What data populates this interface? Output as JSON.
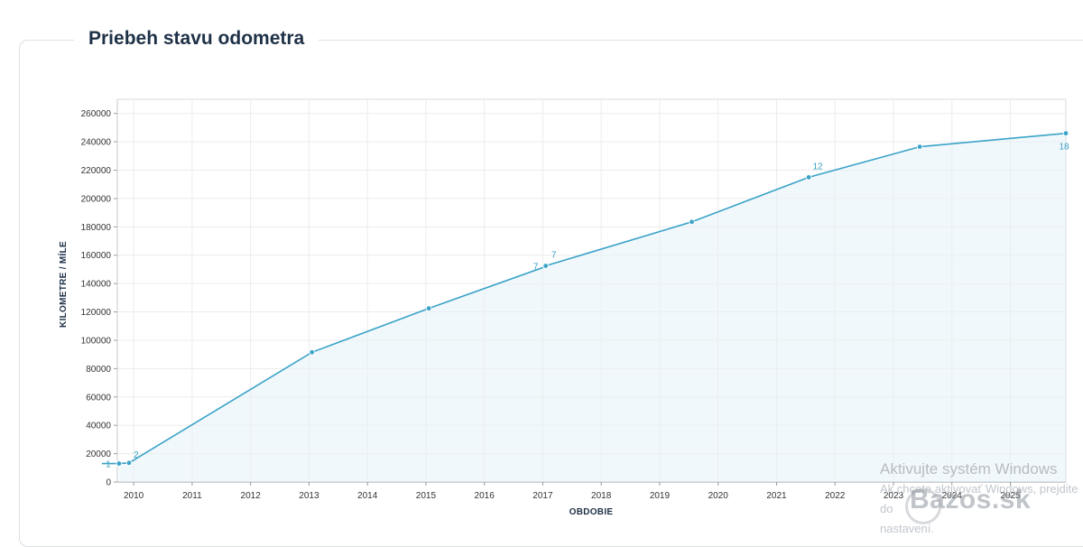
{
  "title": "Priebeh stavu odometra",
  "chart_data": {
    "type": "area",
    "title": "Priebeh stavu odometra",
    "xlabel": "OBDOBIE",
    "ylabel": "KILOMETRE / MÍLE",
    "ylim": [
      0,
      270000
    ],
    "xlim": [
      2009.72,
      2025.95
    ],
    "yticks": [
      "0",
      "20000",
      "40000",
      "60000",
      "80000",
      "100000",
      "120000",
      "140000",
      "160000",
      "180000",
      "200000",
      "220000",
      "240000",
      "260000"
    ],
    "xticks": [
      "2010",
      "2011",
      "2012",
      "2013",
      "2014",
      "2015",
      "2016",
      "2017",
      "2018",
      "2019",
      "2020",
      "2021",
      "2022",
      "2023",
      "2024",
      "2025"
    ],
    "points": [
      {
        "x": 2009.75,
        "y": 13000,
        "label": "1"
      },
      {
        "x": 2009.92,
        "y": 13500,
        "label": "2"
      },
      {
        "x": 2013.05,
        "y": 91500,
        "label": ""
      },
      {
        "x": 2015.05,
        "y": 122500,
        "label": ""
      },
      {
        "x": 2017.05,
        "y": 152000,
        "label": "7"
      },
      {
        "x": 2017.05,
        "y": 152500,
        "label": "7"
      },
      {
        "x": 2019.55,
        "y": 183500,
        "label": ""
      },
      {
        "x": 2021.55,
        "y": 215000,
        "label": "12"
      },
      {
        "x": 2023.45,
        "y": 236500,
        "label": ""
      },
      {
        "x": 2025.95,
        "y": 246000,
        "label": "18"
      }
    ]
  },
  "watermark": {
    "line1": "Aktivujte systém Windows",
    "line2": "Ak chcete aktivovať Windows, prejdite do",
    "line3": "nastavení."
  },
  "brand": "Bazos.sk"
}
